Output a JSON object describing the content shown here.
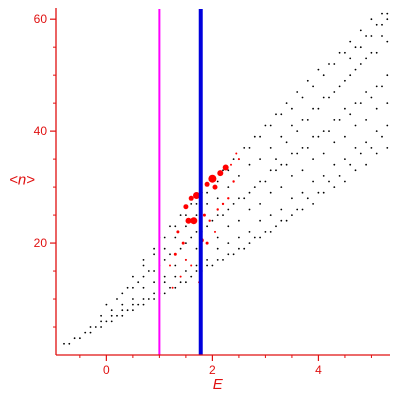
{
  "chart_data": {
    "type": "scatter",
    "title": "",
    "xlabel": "E",
    "ylabel": "<n>",
    "xlim": [
      -0.95,
      5.35
    ],
    "ylim": [
      0,
      62
    ],
    "x_ticks": [
      0,
      2,
      4
    ],
    "y_ticks": [
      20,
      40,
      60
    ],
    "x_tick_labels": [
      "0",
      "2",
      "4"
    ],
    "y_tick_labels": [
      "20",
      "40",
      "60"
    ],
    "grid": false,
    "legend": "none",
    "colors": {
      "axes": "#e01010",
      "points": "#000000",
      "highlight": "#ff0000",
      "line1": "#ff00ff",
      "line2": "#0000dd"
    },
    "vertical_lines": [
      {
        "x": 1.0,
        "color": "#ff00ff"
      },
      {
        "x": 1.78,
        "color": "#0000dd"
      }
    ],
    "series": [
      {
        "color": "#000000",
        "points": [
          [
            -0.8,
            2
          ],
          [
            -0.6,
            3
          ],
          [
            -0.4,
            4
          ],
          [
            -0.2,
            5
          ],
          [
            0.0,
            6
          ],
          [
            0.2,
            7
          ],
          [
            0.4,
            8
          ],
          [
            0.6,
            9
          ],
          [
            0.8,
            10
          ],
          [
            1.0,
            11
          ],
          [
            1.2,
            12
          ],
          [
            1.4,
            13
          ],
          [
            1.6,
            14
          ],
          [
            1.8,
            15
          ],
          [
            2.0,
            16
          ],
          [
            2.2,
            17
          ],
          [
            2.4,
            18
          ],
          [
            2.6,
            19
          ],
          [
            2.8,
            21
          ],
          [
            3.0,
            22
          ],
          [
            3.2,
            23
          ],
          [
            3.4,
            24
          ],
          [
            3.6,
            26
          ],
          [
            3.8,
            28
          ],
          [
            4.0,
            29
          ],
          [
            4.2,
            31
          ],
          [
            4.4,
            32
          ],
          [
            4.6,
            34
          ],
          [
            4.8,
            36
          ],
          [
            5.0,
            37
          ],
          [
            5.2,
            39
          ],
          [
            -0.7,
            2
          ],
          [
            -0.5,
            3
          ],
          [
            -0.3,
            5
          ],
          [
            -0.1,
            6
          ],
          [
            0.1,
            7
          ],
          [
            0.3,
            8
          ],
          [
            0.5,
            9
          ],
          [
            0.7,
            10
          ],
          [
            0.9,
            11
          ],
          [
            1.1,
            13
          ],
          [
            1.3,
            14
          ],
          [
            1.5,
            15
          ],
          [
            1.7,
            16
          ],
          [
            1.9,
            17
          ],
          [
            2.1,
            19
          ],
          [
            2.3,
            20
          ],
          [
            2.5,
            21
          ],
          [
            2.7,
            22
          ],
          [
            2.9,
            24
          ],
          [
            3.1,
            25
          ],
          [
            3.3,
            26
          ],
          [
            3.5,
            28
          ],
          [
            3.7,
            29
          ],
          [
            3.9,
            31
          ],
          [
            4.1,
            32
          ],
          [
            4.3,
            34
          ],
          [
            4.5,
            35
          ],
          [
            4.7,
            37
          ],
          [
            4.9,
            38
          ],
          [
            5.1,
            40
          ],
          [
            5.3,
            41
          ],
          [
            -0.3,
            4
          ],
          [
            -0.1,
            5
          ],
          [
            0.1,
            6
          ],
          [
            0.3,
            7
          ],
          [
            0.5,
            8
          ],
          [
            0.7,
            9
          ],
          [
            0.9,
            10
          ],
          [
            1.1,
            11
          ],
          [
            1.3,
            12
          ],
          [
            1.5,
            13
          ],
          [
            1.7,
            15
          ],
          [
            1.9,
            16
          ],
          [
            2.1,
            17
          ],
          [
            2.3,
            18
          ],
          [
            2.5,
            19
          ],
          [
            2.7,
            20
          ],
          [
            2.9,
            21
          ],
          [
            3.1,
            22
          ],
          [
            3.3,
            24
          ],
          [
            3.5,
            25
          ],
          [
            3.7,
            26
          ],
          [
            3.9,
            27
          ],
          [
            4.1,
            29
          ],
          [
            4.3,
            30
          ],
          [
            4.5,
            31
          ],
          [
            4.7,
            33
          ],
          [
            4.9,
            34
          ],
          [
            5.1,
            36
          ],
          [
            5.3,
            37
          ],
          [
            -0.1,
            7
          ],
          [
            0.1,
            8
          ],
          [
            0.3,
            9
          ],
          [
            0.5,
            10
          ],
          [
            0.7,
            12
          ],
          [
            0.9,
            13
          ],
          [
            1.1,
            14
          ],
          [
            1.3,
            16
          ],
          [
            1.5,
            17
          ],
          [
            1.7,
            19
          ],
          [
            1.9,
            20
          ],
          [
            2.1,
            21
          ],
          [
            2.3,
            23
          ],
          [
            2.5,
            24
          ],
          [
            2.7,
            26
          ],
          [
            2.9,
            27
          ],
          [
            3.1,
            29
          ],
          [
            3.3,
            30
          ],
          [
            3.5,
            32
          ],
          [
            3.7,
            33
          ],
          [
            3.9,
            35
          ],
          [
            4.1,
            36
          ],
          [
            4.3,
            38
          ],
          [
            4.5,
            39
          ],
          [
            4.7,
            41
          ],
          [
            4.9,
            42
          ],
          [
            5.1,
            44
          ],
          [
            5.3,
            45
          ],
          [
            0.3,
            11
          ],
          [
            0.5,
            12
          ],
          [
            0.7,
            14
          ],
          [
            0.9,
            15
          ],
          [
            1.1,
            17
          ],
          [
            1.3,
            18
          ],
          [
            1.5,
            20
          ],
          [
            1.7,
            22
          ],
          [
            1.9,
            23
          ],
          [
            2.1,
            25
          ],
          [
            2.3,
            26
          ],
          [
            2.5,
            28
          ],
          [
            2.7,
            29
          ],
          [
            2.9,
            31
          ],
          [
            3.1,
            33
          ],
          [
            3.3,
            34
          ],
          [
            3.5,
            36
          ],
          [
            3.7,
            37
          ],
          [
            3.9,
            39
          ],
          [
            4.1,
            40
          ],
          [
            4.3,
            42
          ],
          [
            4.5,
            44
          ],
          [
            4.7,
            45
          ],
          [
            4.9,
            47
          ],
          [
            5.1,
            48
          ],
          [
            5.3,
            50
          ],
          [
            0.5,
            14
          ],
          [
            0.7,
            16
          ],
          [
            0.9,
            18
          ],
          [
            1.1,
            19
          ],
          [
            1.3,
            21
          ],
          [
            1.5,
            23
          ],
          [
            1.7,
            25
          ],
          [
            1.9,
            27
          ],
          [
            2.1,
            28
          ],
          [
            2.3,
            30
          ],
          [
            2.5,
            32
          ],
          [
            2.7,
            34
          ],
          [
            2.9,
            35
          ],
          [
            3.1,
            37
          ],
          [
            3.3,
            39
          ],
          [
            3.5,
            41
          ],
          [
            3.7,
            42
          ],
          [
            3.9,
            44
          ],
          [
            4.1,
            46
          ],
          [
            4.3,
            47
          ],
          [
            4.5,
            49
          ],
          [
            4.7,
            51
          ],
          [
            4.9,
            53
          ],
          [
            5.1,
            54
          ],
          [
            5.3,
            56
          ],
          [
            0.7,
            17
          ],
          [
            0.9,
            19
          ],
          [
            1.1,
            21
          ],
          [
            1.3,
            23
          ],
          [
            1.5,
            25
          ],
          [
            1.7,
            27
          ],
          [
            1.9,
            29
          ],
          [
            2.1,
            31
          ],
          [
            2.3,
            33
          ],
          [
            2.5,
            35
          ],
          [
            2.7,
            37
          ],
          [
            2.9,
            39
          ],
          [
            3.1,
            41
          ],
          [
            3.3,
            43
          ],
          [
            3.5,
            44
          ],
          [
            3.7,
            46
          ],
          [
            3.9,
            48
          ],
          [
            4.1,
            50
          ],
          [
            4.3,
            52
          ],
          [
            4.5,
            54
          ],
          [
            4.7,
            55
          ],
          [
            4.9,
            57
          ],
          [
            5.1,
            59
          ],
          [
            5.3,
            61
          ],
          [
            1.0,
            21
          ],
          [
            1.2,
            23
          ],
          [
            1.4,
            25
          ],
          [
            1.6,
            27
          ],
          [
            1.8,
            29
          ],
          [
            2.0,
            31
          ],
          [
            2.2,
            33
          ],
          [
            2.4,
            35
          ],
          [
            2.6,
            37
          ],
          [
            2.8,
            39
          ],
          [
            3.0,
            41
          ],
          [
            3.2,
            43
          ],
          [
            3.4,
            45
          ],
          [
            3.6,
            47
          ],
          [
            3.8,
            49
          ],
          [
            4.0,
            51
          ],
          [
            4.2,
            52
          ],
          [
            4.4,
            54
          ],
          [
            4.6,
            56
          ],
          [
            4.8,
            58
          ],
          [
            5.0,
            60
          ],
          [
            5.2,
            61
          ],
          [
            0.0,
            9
          ],
          [
            0.2,
            10
          ],
          [
            0.4,
            12
          ],
          [
            0.6,
            13
          ],
          [
            0.8,
            15
          ],
          [
            1.0,
            16
          ],
          [
            1.2,
            18
          ],
          [
            1.4,
            19
          ],
          [
            1.6,
            21
          ],
          [
            1.8,
            22
          ],
          [
            2.0,
            24
          ],
          [
            2.2,
            25
          ],
          [
            2.4,
            27
          ],
          [
            2.6,
            28
          ],
          [
            2.8,
            30
          ],
          [
            3.0,
            31
          ],
          [
            3.2,
            33
          ],
          [
            3.4,
            34
          ],
          [
            3.6,
            36
          ],
          [
            3.8,
            37
          ],
          [
            4.0,
            39
          ],
          [
            4.2,
            40
          ],
          [
            4.4,
            42
          ],
          [
            4.6,
            43
          ],
          [
            4.8,
            45
          ],
          [
            5.0,
            46
          ],
          [
            5.2,
            48
          ],
          [
            3.2,
            35
          ],
          [
            3.4,
            38
          ],
          [
            3.6,
            40
          ],
          [
            3.8,
            42
          ],
          [
            4.0,
            44
          ],
          [
            4.2,
            46
          ],
          [
            4.4,
            48
          ],
          [
            4.6,
            50
          ],
          [
            4.8,
            52
          ],
          [
            5.0,
            54
          ],
          [
            5.2,
            57
          ],
          [
            4.6,
            53
          ],
          [
            4.8,
            55
          ],
          [
            5.0,
            57
          ],
          [
            5.2,
            59
          ],
          [
            5.3,
            60
          ]
        ]
      },
      {
        "color": "#ff0000",
        "points": [
          [
            1.55,
            24,
            3
          ],
          [
            1.65,
            24,
            3.5
          ],
          [
            1.7,
            28.5,
            3.5
          ],
          [
            1.5,
            26.5,
            2.5
          ],
          [
            1.6,
            28,
            2.5
          ],
          [
            2.0,
            31.5,
            4
          ],
          [
            2.15,
            32.5,
            3
          ],
          [
            2.25,
            33.5,
            3
          ],
          [
            1.9,
            30.5,
            2.5
          ],
          [
            2.05,
            30,
            2.5
          ],
          [
            1.35,
            22,
            1.5
          ],
          [
            1.45,
            20,
            1.5
          ],
          [
            1.3,
            18,
            1.5
          ],
          [
            1.2,
            16,
            1
          ],
          [
            1.4,
            14,
            1
          ],
          [
            1.5,
            17,
            1
          ],
          [
            1.8,
            20.5,
            2
          ],
          [
            1.9,
            20,
            1.5
          ],
          [
            1.85,
            25,
            1.5
          ],
          [
            1.95,
            24,
            1.2
          ],
          [
            2.1,
            26,
            1.2
          ],
          [
            2.3,
            28,
            1.2
          ],
          [
            2.4,
            31,
            1.2
          ],
          [
            2.5,
            35,
            1
          ],
          [
            2.35,
            34,
            1
          ],
          [
            2.45,
            36,
            1
          ],
          [
            2.2,
            27,
            1.2
          ],
          [
            2.05,
            22,
            1
          ],
          [
            1.75,
            13,
            1
          ],
          [
            1.6,
            16,
            1
          ],
          [
            1.25,
            12,
            1
          ]
        ]
      }
    ]
  }
}
